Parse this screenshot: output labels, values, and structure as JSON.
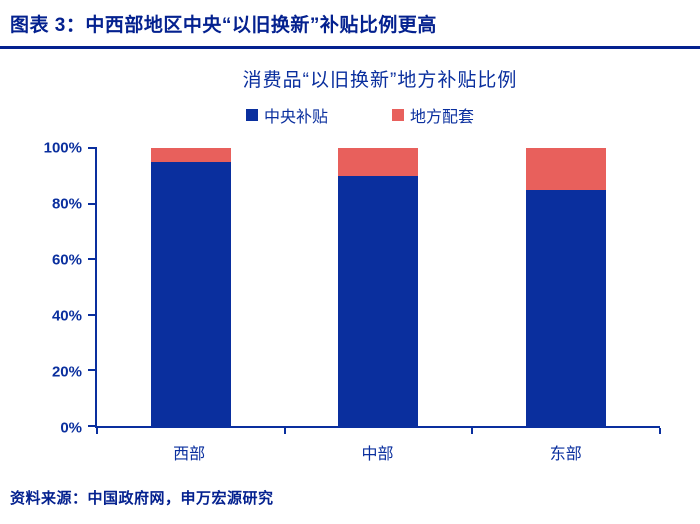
{
  "header": {
    "title": "图表 3：中西部地区中央“以旧换新”补贴比例更高"
  },
  "footer": {
    "source": "资料来源：中国政府网，申万宏源研究"
  },
  "colors": {
    "navy": "#0a2f9e",
    "red": "#e8605c"
  },
  "chart_data": {
    "type": "bar",
    "stacked": true,
    "title": "消费品“以旧换新”地方补贴比例",
    "categories": [
      "西部",
      "中部",
      "东部"
    ],
    "series": [
      {
        "name": "中央补贴",
        "color": "#0a2f9e",
        "values": [
          95,
          90,
          85
        ]
      },
      {
        "name": "地方配套",
        "color": "#e8605c",
        "values": [
          5,
          10,
          15
        ]
      }
    ],
    "xlabel": "",
    "ylabel": "",
    "ylim": [
      0,
      100
    ],
    "yticks": [
      "0%",
      "20%",
      "40%",
      "60%",
      "80%",
      "100%"
    ],
    "grid": false,
    "legend_position": "top"
  }
}
